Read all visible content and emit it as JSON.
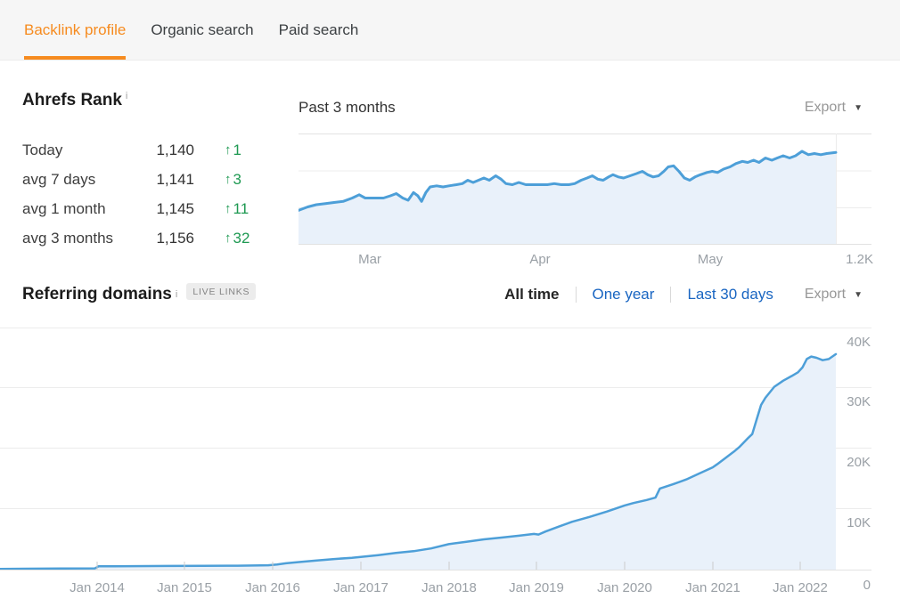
{
  "tab_bar": {
    "tabs": [
      {
        "label": "Backlink profile",
        "active": true
      },
      {
        "label": "Organic search",
        "active": false
      },
      {
        "label": "Paid search",
        "active": false
      }
    ]
  },
  "colors": {
    "accent_orange": "#f68b1f",
    "link_blue": "#1a66c2",
    "positive_green": "#1e9952",
    "chart_line_blue": "#4d9fd8",
    "chart_fill_blue": "#e9f1fa",
    "tabbar_background": "#f6f6f6"
  },
  "ahrefs_rank": {
    "title": "Ahrefs Rank",
    "info_icon": "i",
    "stats": [
      {
        "label": "Today",
        "value": "1,140",
        "direction": "up",
        "change": "1"
      },
      {
        "label": "avg 7 days",
        "value": "1,141",
        "direction": "up",
        "change": "3"
      },
      {
        "label": "avg 1 month",
        "value": "1,145",
        "direction": "up",
        "change": "11"
      },
      {
        "label": "avg 3 months",
        "value": "1,156",
        "direction": "up",
        "change": "32"
      }
    ],
    "period_title": "Past 3 months",
    "export_label": "Export"
  },
  "referring_domains": {
    "title": "Referring domains",
    "info_icon": "i",
    "badge": "LIVE LINKS",
    "filters": [
      {
        "label": "All time",
        "active": true
      },
      {
        "label": "One year",
        "active": false
      },
      {
        "label": "Last 30 days",
        "active": false
      }
    ],
    "export_label": "Export"
  },
  "chart_data": [
    {
      "type": "area",
      "title": "Past 3 months",
      "subject": "Ahrefs Rank trend over the past 3 months",
      "legend_position": "none",
      "grid": true,
      "x_tick_labels": [
        "Mar",
        "Apr",
        "May"
      ],
      "right_axis_label": "1.2K",
      "y_axis": {
        "note": "rank axis, lower rank plotted higher",
        "top_rank": 1120,
        "bottom_rank": 1220
      },
      "points": [
        [
          0.0,
          1189
        ],
        [
          0.017,
          1186
        ],
        [
          0.033,
          1184
        ],
        [
          0.05,
          1183
        ],
        [
          0.066,
          1182
        ],
        [
          0.083,
          1181
        ],
        [
          0.1,
          1178
        ],
        [
          0.113,
          1175
        ],
        [
          0.124,
          1178
        ],
        [
          0.141,
          1178
        ],
        [
          0.158,
          1178
        ],
        [
          0.171,
          1176
        ],
        [
          0.182,
          1174
        ],
        [
          0.194,
          1178
        ],
        [
          0.204,
          1180
        ],
        [
          0.214,
          1173
        ],
        [
          0.222,
          1176
        ],
        [
          0.229,
          1181
        ],
        [
          0.237,
          1173
        ],
        [
          0.245,
          1168
        ],
        [
          0.257,
          1167
        ],
        [
          0.269,
          1168
        ],
        [
          0.28,
          1167
        ],
        [
          0.294,
          1166
        ],
        [
          0.305,
          1165
        ],
        [
          0.315,
          1162
        ],
        [
          0.325,
          1164
        ],
        [
          0.335,
          1162
        ],
        [
          0.345,
          1160
        ],
        [
          0.355,
          1162
        ],
        [
          0.367,
          1158
        ],
        [
          0.377,
          1161
        ],
        [
          0.386,
          1165
        ],
        [
          0.398,
          1166
        ],
        [
          0.41,
          1164
        ],
        [
          0.423,
          1166
        ],
        [
          0.436,
          1166
        ],
        [
          0.449,
          1166
        ],
        [
          0.463,
          1166
        ],
        [
          0.476,
          1165
        ],
        [
          0.489,
          1166
        ],
        [
          0.503,
          1166
        ],
        [
          0.514,
          1165
        ],
        [
          0.526,
          1162
        ],
        [
          0.537,
          1160
        ],
        [
          0.547,
          1158
        ],
        [
          0.557,
          1161
        ],
        [
          0.567,
          1162
        ],
        [
          0.577,
          1159
        ],
        [
          0.585,
          1157
        ],
        [
          0.595,
          1159
        ],
        [
          0.605,
          1160
        ],
        [
          0.617,
          1158
        ],
        [
          0.629,
          1156
        ],
        [
          0.64,
          1154
        ],
        [
          0.65,
          1157
        ],
        [
          0.66,
          1159
        ],
        [
          0.67,
          1158
        ],
        [
          0.68,
          1154
        ],
        [
          0.688,
          1150
        ],
        [
          0.698,
          1149
        ],
        [
          0.708,
          1154
        ],
        [
          0.718,
          1160
        ],
        [
          0.728,
          1162
        ],
        [
          0.738,
          1159
        ],
        [
          0.748,
          1157
        ],
        [
          0.76,
          1155
        ],
        [
          0.77,
          1154
        ],
        [
          0.78,
          1155
        ],
        [
          0.791,
          1152
        ],
        [
          0.803,
          1150
        ],
        [
          0.814,
          1147
        ],
        [
          0.826,
          1145
        ],
        [
          0.836,
          1146
        ],
        [
          0.847,
          1144
        ],
        [
          0.857,
          1146
        ],
        [
          0.869,
          1142
        ],
        [
          0.881,
          1144
        ],
        [
          0.891,
          1142
        ],
        [
          0.902,
          1140
        ],
        [
          0.914,
          1142
        ],
        [
          0.925,
          1140
        ],
        [
          0.937,
          1136
        ],
        [
          0.949,
          1139
        ],
        [
          0.96,
          1138
        ],
        [
          0.972,
          1139
        ],
        [
          0.983,
          1138
        ],
        [
          1.0,
          1137
        ]
      ]
    },
    {
      "type": "area",
      "title": "Referring domains over time (All time)",
      "legend_position": "none",
      "grid": true,
      "x_tick_labels": [
        "Jan 2014",
        "Jan 2015",
        "Jan 2016",
        "Jan 2017",
        "Jan 2018",
        "Jan 2019",
        "Jan 2020",
        "Jan 2021",
        "Jan 2022"
      ],
      "y_tick_labels": [
        "40K",
        "30K",
        "20K",
        "10K",
        "0"
      ],
      "ylim": [
        0,
        40000
      ],
      "x_range_years": [
        2012.9,
        2022.4
      ],
      "points_year_valueK": [
        [
          2012.9,
          0.12
        ],
        [
          2013.2,
          0.15
        ],
        [
          2013.6,
          0.18
        ],
        [
          2013.98,
          0.2
        ],
        [
          2014.02,
          0.55
        ],
        [
          2014.4,
          0.58
        ],
        [
          2014.8,
          0.6
        ],
        [
          2015.2,
          0.62
        ],
        [
          2015.6,
          0.65
        ],
        [
          2015.95,
          0.72
        ],
        [
          2016.05,
          0.85
        ],
        [
          2016.15,
          1.05
        ],
        [
          2016.3,
          1.25
        ],
        [
          2016.5,
          1.5
        ],
        [
          2016.7,
          1.75
        ],
        [
          2016.9,
          1.95
        ],
        [
          2017.0,
          2.1
        ],
        [
          2017.2,
          2.4
        ],
        [
          2017.4,
          2.75
        ],
        [
          2017.6,
          3.05
        ],
        [
          2017.8,
          3.5
        ],
        [
          2018.0,
          4.2
        ],
        [
          2018.2,
          4.6
        ],
        [
          2018.4,
          5.0
        ],
        [
          2018.6,
          5.3
        ],
        [
          2018.8,
          5.6
        ],
        [
          2018.97,
          5.9
        ],
        [
          2019.02,
          5.8
        ],
        [
          2019.1,
          6.3
        ],
        [
          2019.25,
          7.1
        ],
        [
          2019.4,
          7.9
        ],
        [
          2019.6,
          8.7
        ],
        [
          2019.8,
          9.6
        ],
        [
          2020.0,
          10.6
        ],
        [
          2020.1,
          11.0
        ],
        [
          2020.25,
          11.5
        ],
        [
          2020.35,
          11.9
        ],
        [
          2020.4,
          13.4
        ],
        [
          2020.55,
          14.1
        ],
        [
          2020.7,
          14.9
        ],
        [
          2020.85,
          15.9
        ],
        [
          2021.0,
          16.9
        ],
        [
          2021.05,
          17.4
        ],
        [
          2021.15,
          18.5
        ],
        [
          2021.25,
          19.6
        ],
        [
          2021.3,
          20.2
        ],
        [
          2021.4,
          21.7
        ],
        [
          2021.45,
          22.4
        ],
        [
          2021.5,
          24.8
        ],
        [
          2021.55,
          27.2
        ],
        [
          2021.6,
          28.4
        ],
        [
          2021.7,
          30.2
        ],
        [
          2021.8,
          31.2
        ],
        [
          2021.9,
          32.0
        ],
        [
          2021.97,
          32.6
        ],
        [
          2022.02,
          33.4
        ],
        [
          2022.07,
          34.8
        ],
        [
          2022.12,
          35.2
        ],
        [
          2022.18,
          35.0
        ],
        [
          2022.25,
          34.6
        ],
        [
          2022.32,
          34.8
        ],
        [
          2022.4,
          35.6
        ]
      ]
    }
  ]
}
